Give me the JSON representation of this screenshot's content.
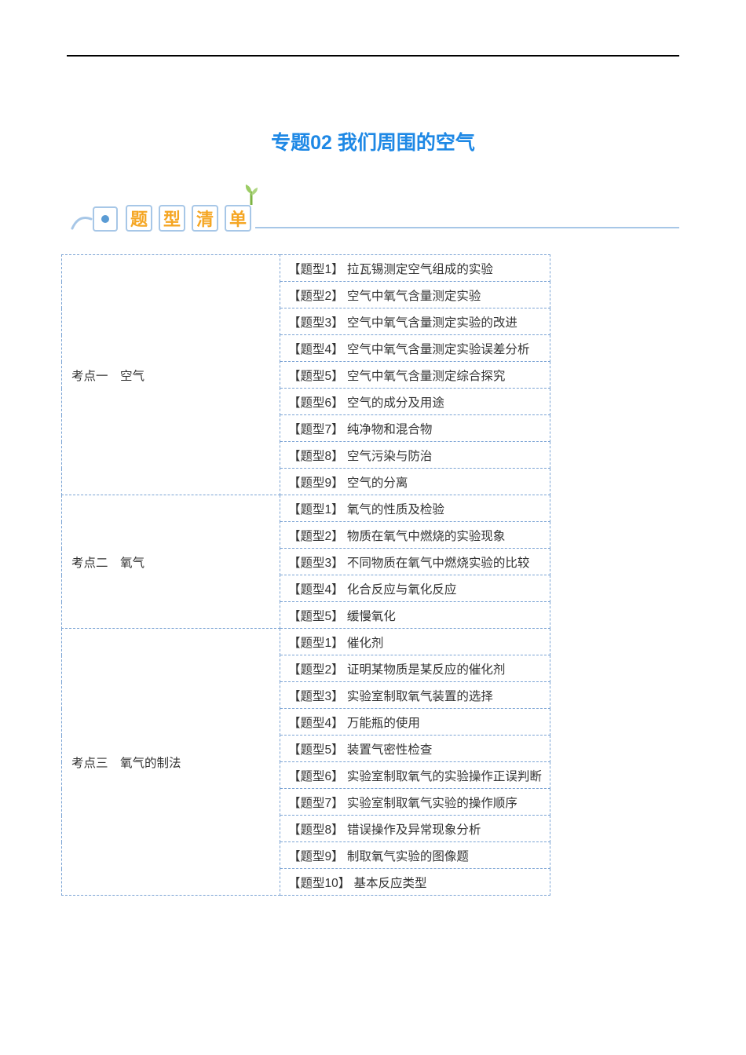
{
  "colors": {
    "title": "#1e88e5",
    "box_border": "#a7c7e7",
    "box_text": "#f5a623",
    "bullet": "#5a9bd4",
    "table_border": "#7aa3d4",
    "text": "#333333",
    "background": "#ffffff",
    "top_line": "#000000"
  },
  "title": "专题02 我们周围的空气",
  "section_label_chars": [
    "题",
    "型",
    "清",
    "单"
  ],
  "table": {
    "groups": [
      {
        "label": "考点一　空气",
        "items": [
          {
            "tag": "【题型1】",
            "text": "拉瓦锡测定空气组成的实验"
          },
          {
            "tag": "【题型2】",
            "text": "空气中氧气含量测定实验"
          },
          {
            "tag": "【题型3】",
            "text": "空气中氧气含量测定实验的改进"
          },
          {
            "tag": "【题型4】",
            "text": "空气中氧气含量测定实验误差分析"
          },
          {
            "tag": "【题型5】",
            "text": "空气中氧气含量测定综合探究"
          },
          {
            "tag": "【题型6】",
            "text": "空气的成分及用途"
          },
          {
            "tag": "【题型7】",
            "text": "纯净物和混合物"
          },
          {
            "tag": "【题型8】",
            "text": "空气污染与防治"
          },
          {
            "tag": "【题型9】",
            "text": "空气的分离"
          }
        ]
      },
      {
        "label": "考点二　氧气",
        "items": [
          {
            "tag": "【题型1】",
            "text": "氧气的性质及检验"
          },
          {
            "tag": "【题型2】",
            "text": "物质在氧气中燃烧的实验现象"
          },
          {
            "tag": "【题型3】",
            "text": "不同物质在氧气中燃烧实验的比较"
          },
          {
            "tag": "【题型4】",
            "text": "化合反应与氧化反应"
          },
          {
            "tag": "【题型5】",
            "text": "缓慢氧化"
          }
        ]
      },
      {
        "label": "考点三　氧气的制法",
        "items": [
          {
            "tag": "【题型1】",
            "text": "催化剂"
          },
          {
            "tag": "【题型2】",
            "text": "证明某物质是某反应的催化剂"
          },
          {
            "tag": "【题型3】",
            "text": "实验室制取氧气装置的选择"
          },
          {
            "tag": "【题型4】",
            "text": "万能瓶的使用"
          },
          {
            "tag": "【题型5】",
            "text": "装置气密性检查"
          },
          {
            "tag": "【题型6】",
            "text": "实验室制取氧气的实验操作正误判断"
          },
          {
            "tag": "【题型7】",
            "text": "实验室制取氧气实验的操作顺序"
          },
          {
            "tag": "【题型8】",
            "text": "错误操作及异常现象分析"
          },
          {
            "tag": "【题型9】",
            "text": "制取氧气实验的图像题"
          },
          {
            "tag": "【题型10】",
            "text": "基本反应类型"
          }
        ]
      }
    ]
  }
}
